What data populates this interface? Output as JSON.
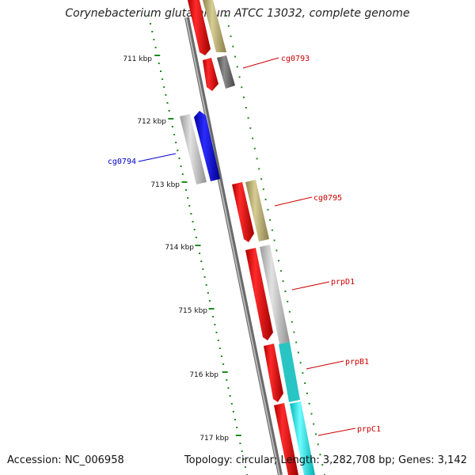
{
  "title": "Corynebacterium glutamicum ATCC 13032, complete genome",
  "footer": {
    "accession": "Accession: NC_006958",
    "summary": "Topology: circular; Length: 3,282,708 bp; Genes: 3,142"
  },
  "scale_ticks": [
    "711 kbp",
    "712 kbp",
    "713 kbp",
    "714 kbp",
    "715 kbp",
    "716 kbp",
    "717 kbp"
  ],
  "gene_labels": [
    "cg0793",
    "cg0794",
    "cg0795",
    "prpD1",
    "prpB1",
    "prpC1"
  ],
  "colors": {
    "backbone": "#8a8a8a",
    "scale_dots": "#1e8a1e",
    "cds_red": "#ff0000",
    "khaki": "#bdb176",
    "dark_gray": "#6e6e6e",
    "light_gray": "#c4c4c4",
    "blue": "#0000ff",
    "cyan": "#00ffff",
    "label_red": "#cc0000",
    "label_blue": "#0000cc"
  }
}
